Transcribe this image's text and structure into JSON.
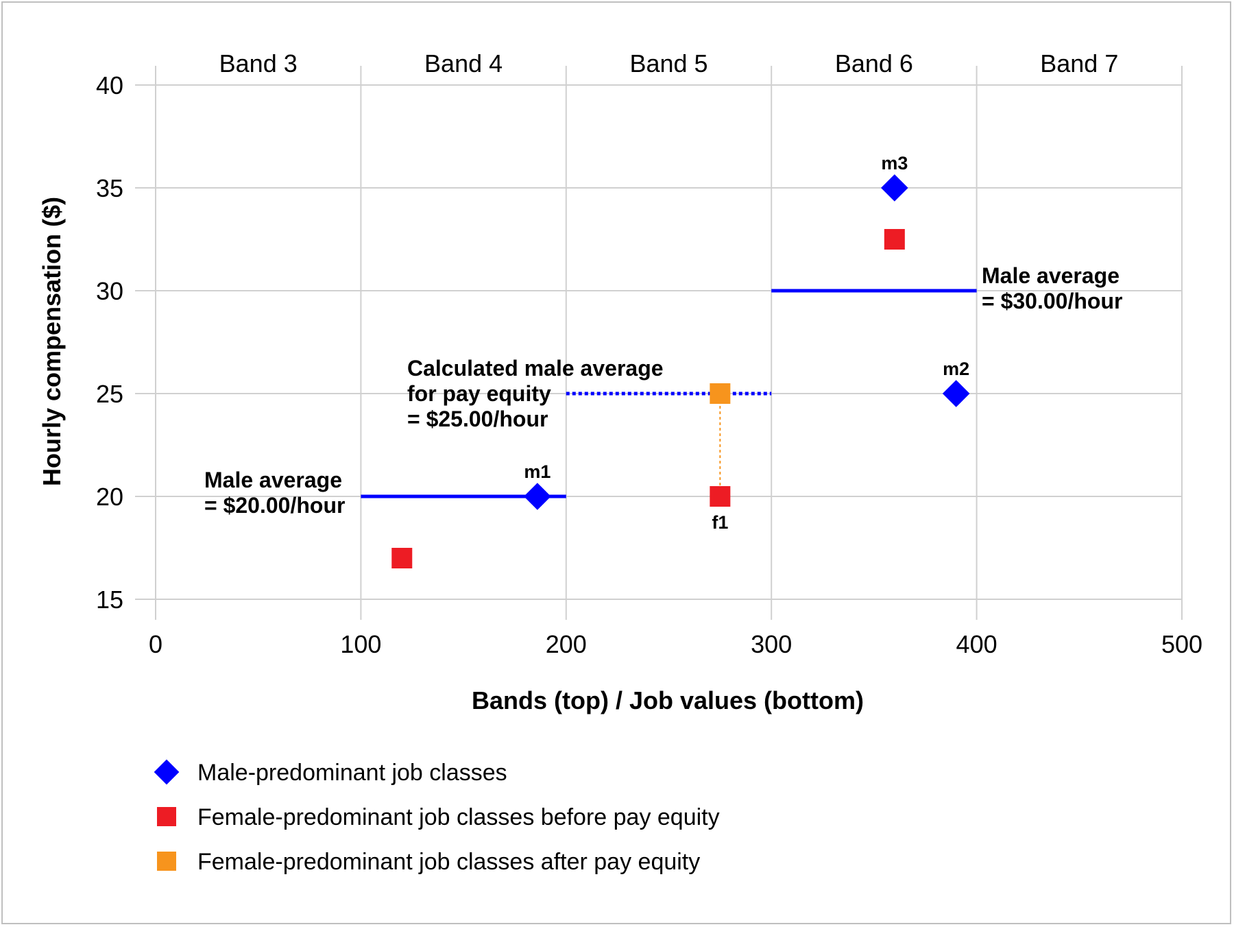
{
  "chart_data": {
    "type": "scatter",
    "xlabel": "Bands (top) / Job values (bottom)",
    "ylabel": "Hourly compensation ($)",
    "xlim": [
      0,
      500
    ],
    "ylim": [
      15,
      40
    ],
    "x_ticks": [
      "0",
      "100",
      "200",
      "300",
      "400",
      "500"
    ],
    "y_ticks": [
      "15",
      "20",
      "25",
      "30",
      "35",
      "40"
    ],
    "grid": true,
    "bands": [
      {
        "label": "Band 3",
        "x_start": 0,
        "x_end": 100
      },
      {
        "label": "Band 4",
        "x_start": 100,
        "x_end": 200
      },
      {
        "label": "Band 5",
        "x_start": 200,
        "x_end": 300
      },
      {
        "label": "Band 6",
        "x_start": 300,
        "x_end": 400
      },
      {
        "label": "Band 7",
        "x_start": 400,
        "x_end": 500
      }
    ],
    "series": [
      {
        "name": "Male-predominant job classes",
        "marker": "diamond",
        "color": "#0000ff",
        "points": [
          {
            "x": 186,
            "y": 20,
            "label": "m1"
          },
          {
            "x": 390,
            "y": 25,
            "label": "m2"
          },
          {
            "x": 360,
            "y": 35,
            "label": "m3"
          }
        ]
      },
      {
        "name": "Female-predominant job classes before pay equity",
        "marker": "square",
        "color": "#ed1c24",
        "points": [
          {
            "x": 120,
            "y": 17,
            "label": ""
          },
          {
            "x": 275,
            "y": 20,
            "label": "f1"
          },
          {
            "x": 360,
            "y": 32.5,
            "label": ""
          }
        ]
      },
      {
        "name": "Female-predominant job classes after pay equity",
        "marker": "square",
        "color": "#f7941d",
        "points": [
          {
            "x": 275,
            "y": 25,
            "label": ""
          }
        ]
      }
    ],
    "reference_lines": [
      {
        "x1": 100,
        "x2": 200,
        "y": 20,
        "style": "solid",
        "color": "#0000ff"
      },
      {
        "x1": 300,
        "x2": 400,
        "y": 30,
        "style": "solid",
        "color": "#0000ff"
      },
      {
        "x1": 200,
        "x2": 300,
        "y": 25,
        "style": "dotted",
        "color": "#0000ff"
      },
      {
        "x": 275,
        "y1": 20,
        "y2": 25,
        "style": "dotted-vertical",
        "color": "#f7941d"
      }
    ],
    "annotations": [
      {
        "lines": [
          "Male average",
          "= $20.00/hour"
        ]
      },
      {
        "lines": [
          "Calculated male average",
          "for pay equity",
          "= $25.00/hour"
        ]
      },
      {
        "lines": [
          "Male average",
          "= $30.00/hour"
        ]
      }
    ],
    "legend_position": "bottom-left"
  }
}
